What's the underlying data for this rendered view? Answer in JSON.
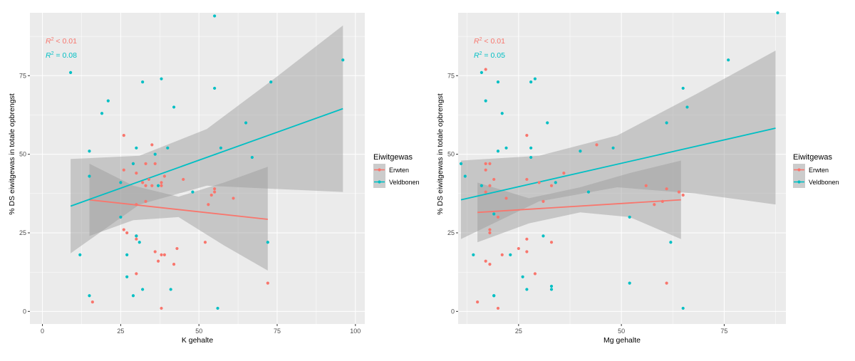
{
  "colors": {
    "erwten": "#f8766d",
    "veldbonen": "#00bfc4",
    "panel_bg": "#ebebeb",
    "grid": "#ffffff",
    "ribbon": "#999999"
  },
  "chart_data": [
    {
      "type": "scatter",
      "xlabel": "K gehalte",
      "ylabel": "% DS eiwitgewas in totale opbrengst",
      "xlim": [
        -4,
        103
      ],
      "ylim": [
        -4,
        95
      ],
      "xticks": [
        0,
        25,
        50,
        75,
        100
      ],
      "yticks": [
        0,
        25,
        50,
        75
      ],
      "grid": true,
      "legend": {
        "title": "Eiwitgewas",
        "position": "right",
        "entries": [
          "Erwten",
          "Veldbonen"
        ]
      },
      "annotations": [
        {
          "series": "Erwten",
          "label": "R",
          "op": " < 0.01"
        },
        {
          "series": "Veldbonen",
          "label": "R",
          "op": " = 0.08"
        }
      ],
      "series": [
        {
          "name": "Erwten",
          "points": [
            [
              26,
              56
            ],
            [
              35,
              53
            ],
            [
              29,
              47
            ],
            [
              33,
              47
            ],
            [
              36,
              47
            ],
            [
              26,
              45
            ],
            [
              30,
              44
            ],
            [
              39,
              43
            ],
            [
              34,
              42
            ],
            [
              38,
              41
            ],
            [
              32,
              41
            ],
            [
              33,
              40
            ],
            [
              35,
              40
            ],
            [
              38,
              40
            ],
            [
              45,
              42
            ],
            [
              61,
              36
            ],
            [
              55,
              39
            ],
            [
              55,
              38
            ],
            [
              54,
              37
            ],
            [
              53,
              34
            ],
            [
              33,
              35
            ],
            [
              30,
              34
            ],
            [
              26,
              26
            ],
            [
              27,
              25
            ],
            [
              30,
              24
            ],
            [
              30,
              23
            ],
            [
              52,
              22
            ],
            [
              43,
              20
            ],
            [
              36,
              19
            ],
            [
              38,
              18
            ],
            [
              39,
              18
            ],
            [
              37,
              16
            ],
            [
              42,
              15
            ],
            [
              30,
              12
            ],
            [
              16,
              3
            ],
            [
              38,
              1
            ],
            [
              72,
              9
            ]
          ],
          "fit": {
            "x": [
              15,
              72
            ],
            "y": [
              35.5,
              29.3
            ]
          },
          "band": {
            "x": [
              15,
              29,
              43.5,
              58,
              72
            ],
            "upper": [
              47,
              40,
              36.5,
              41,
              46
            ],
            "lower": [
              24,
              29,
              30,
              21,
              13
            ]
          }
        },
        {
          "name": "Veldbonen",
          "points": [
            [
              55,
              94
            ],
            [
              96,
              80
            ],
            [
              9,
              76
            ],
            [
              38,
              74
            ],
            [
              32,
              73
            ],
            [
              73,
              73
            ],
            [
              55,
              71
            ],
            [
              21,
              67
            ],
            [
              42,
              65
            ],
            [
              19,
              63
            ],
            [
              65,
              60
            ],
            [
              40,
              52
            ],
            [
              30,
              52
            ],
            [
              57,
              52
            ],
            [
              15,
              51
            ],
            [
              36,
              50
            ],
            [
              67,
              49
            ],
            [
              29,
              47
            ],
            [
              15,
              43
            ],
            [
              25,
              41
            ],
            [
              37,
              40
            ],
            [
              48,
              38
            ],
            [
              25,
              30
            ],
            [
              30,
              24
            ],
            [
              31,
              22
            ],
            [
              72,
              22
            ],
            [
              12,
              18
            ],
            [
              27,
              18
            ],
            [
              27,
              11
            ],
            [
              15,
              5
            ],
            [
              29,
              5
            ],
            [
              32,
              7
            ],
            [
              41,
              7
            ],
            [
              56,
              1
            ]
          ],
          "fit": {
            "x": [
              9,
              96
            ],
            "y": [
              33.5,
              64.5
            ]
          },
          "band": {
            "x": [
              9,
              31,
              52.5,
              74,
              96
            ],
            "upper": [
              48.5,
              49.5,
              58,
              74,
              91
            ],
            "lower": [
              18.5,
              34,
              40,
              39,
              38
            ]
          }
        }
      ]
    },
    {
      "type": "scatter",
      "xlabel": "Mg gehalte",
      "ylabel": "% DS eiwitgewas in totale opbrengst",
      "xlim": [
        10.3,
        90
      ],
      "ylim": [
        -4,
        95
      ],
      "xticks": [
        25,
        50,
        75
      ],
      "yticks": [
        0,
        25,
        50,
        75
      ],
      "grid": true,
      "legend": {
        "title": "Eiwitgewas",
        "position": "right",
        "entries": [
          "Erwten",
          "Veldbonen"
        ]
      },
      "annotations": [
        {
          "series": "Erwten",
          "label": "R",
          "op": " < 0.01"
        },
        {
          "series": "Veldbonen",
          "label": "R",
          "op": " = 0.05"
        }
      ],
      "series": [
        {
          "name": "Erwten",
          "points": [
            [
              17,
              77
            ],
            [
              27,
              56
            ],
            [
              44,
              53
            ],
            [
              17,
              47
            ],
            [
              18,
              47
            ],
            [
              17,
              45
            ],
            [
              19,
              42
            ],
            [
              18,
              40
            ],
            [
              17,
              38
            ],
            [
              27,
              42
            ],
            [
              33,
              40
            ],
            [
              36,
              44
            ],
            [
              30,
              41
            ],
            [
              56,
              40
            ],
            [
              61,
              39
            ],
            [
              58,
              34
            ],
            [
              64,
              38
            ],
            [
              65,
              37
            ],
            [
              60,
              35
            ],
            [
              20,
              30
            ],
            [
              22,
              36
            ],
            [
              31,
              35
            ],
            [
              18,
              26
            ],
            [
              18,
              25
            ],
            [
              27,
              23
            ],
            [
              33,
              22
            ],
            [
              25,
              20
            ],
            [
              21,
              18
            ],
            [
              27,
              19
            ],
            [
              17,
              16
            ],
            [
              18,
              15
            ],
            [
              29,
              12
            ],
            [
              15,
              3
            ],
            [
              20,
              1
            ],
            [
              61,
              9
            ]
          ],
          "fit": {
            "x": [
              15,
              64.5
            ],
            "y": [
              31.5,
              35.5
            ]
          },
          "band": {
            "x": [
              15,
              27.5,
              40,
              52,
              64.5
            ],
            "upper": [
              41,
              36,
              39.5,
              44,
              48
            ],
            "lower": [
              22,
              28,
              31.5,
              30,
              23
            ]
          }
        },
        {
          "name": "Veldbonen",
          "points": [
            [
              88,
              95
            ],
            [
              76,
              80
            ],
            [
              16,
              76
            ],
            [
              29,
              74
            ],
            [
              20,
              73
            ],
            [
              28,
              73
            ],
            [
              65,
              71
            ],
            [
              17,
              67
            ],
            [
              66,
              65
            ],
            [
              21,
              63
            ],
            [
              32,
              60
            ],
            [
              61,
              60
            ],
            [
              28,
              52
            ],
            [
              22,
              52
            ],
            [
              48,
              52
            ],
            [
              20,
              51
            ],
            [
              40,
              51
            ],
            [
              28,
              49
            ],
            [
              11,
              47
            ],
            [
              12,
              43
            ],
            [
              16,
              40
            ],
            [
              34,
              41
            ],
            [
              42,
              38
            ],
            [
              19,
              31
            ],
            [
              31,
              24
            ],
            [
              52,
              30
            ],
            [
              62,
              22
            ],
            [
              14,
              18
            ],
            [
              23,
              18
            ],
            [
              26,
              11
            ],
            [
              19,
              5
            ],
            [
              19,
              5
            ],
            [
              27,
              7
            ],
            [
              33,
              8
            ],
            [
              33,
              7
            ],
            [
              52,
              9
            ],
            [
              65,
              1
            ]
          ],
          "fit": {
            "x": [
              11,
              87.5
            ],
            "y": [
              35.5,
              58.3
            ]
          },
          "band": {
            "x": [
              11,
              30,
              49,
              68,
              87.5
            ],
            "upper": [
              48,
              49.5,
              56,
              69,
              83
            ],
            "lower": [
              23,
              35,
              39.5,
              37.5,
              34
            ]
          }
        }
      ]
    }
  ]
}
